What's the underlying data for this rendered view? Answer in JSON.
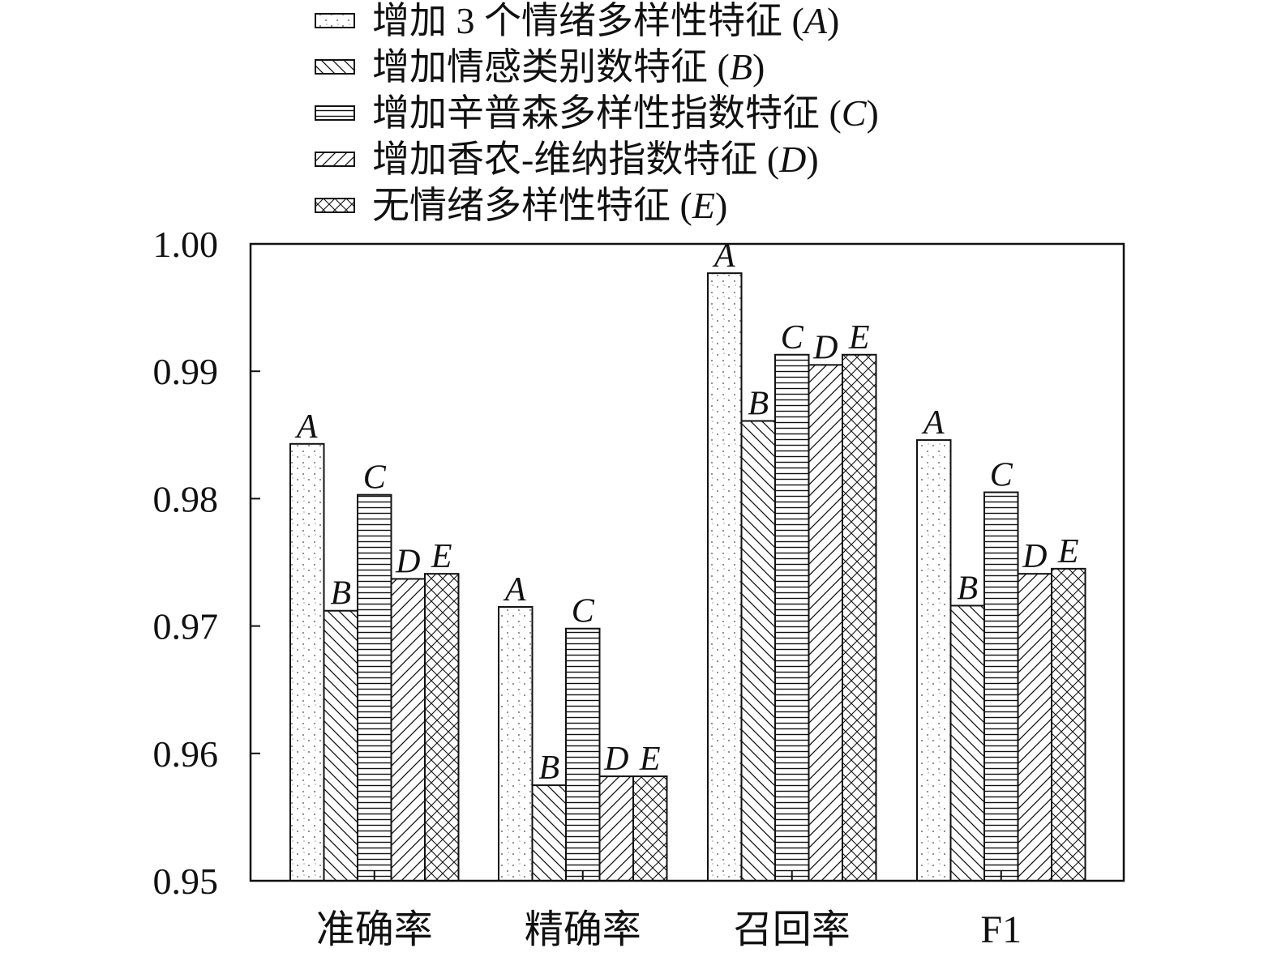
{
  "chart_data": {
    "type": "bar",
    "title": "",
    "xlabel": "",
    "ylabel": "",
    "categories": [
      "准确率",
      "精确率",
      "召回率",
      "F1"
    ],
    "ylim": [
      0.95,
      1.0
    ],
    "yticks": [
      "0.95",
      "0.96",
      "0.97",
      "0.98",
      "0.99",
      "1.00"
    ],
    "grid": false,
    "legend_position": "top-center",
    "series": [
      {
        "name": "增加 3 个情绪多样性特征",
        "letter": "A",
        "pattern": "dots",
        "values": [
          0.9843,
          0.9715,
          0.9977,
          0.9846
        ]
      },
      {
        "name": "增加情感类别数特征",
        "letter": "B",
        "pattern": "backslash",
        "values": [
          0.9712,
          0.9575,
          0.9861,
          0.9716
        ]
      },
      {
        "name": "增加辛普森多样性指数特征",
        "letter": "C",
        "pattern": "horizontal",
        "values": [
          0.9803,
          0.9698,
          0.9913,
          0.9805
        ]
      },
      {
        "name": "增加香农-维纳指数特征",
        "letter": "D",
        "pattern": "slash",
        "values": [
          0.9737,
          0.9582,
          0.9905,
          0.9741
        ]
      },
      {
        "name": "无情绪多样性特征",
        "letter": "E",
        "pattern": "crosshatch",
        "values": [
          0.9741,
          0.9582,
          0.9913,
          0.9745
        ]
      }
    ]
  }
}
